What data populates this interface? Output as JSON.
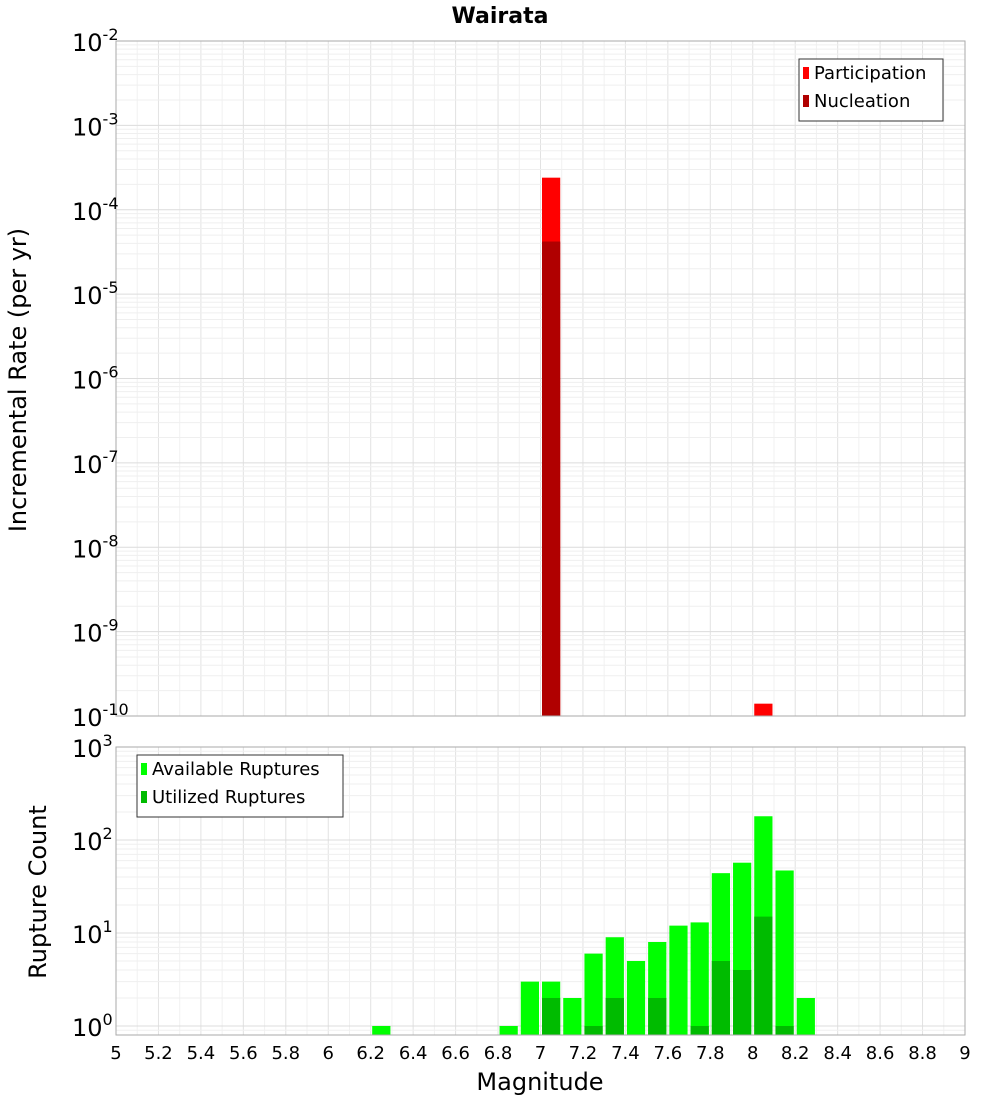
{
  "title": "Wairata",
  "colors": {
    "participation": "#ff0000",
    "nucleation": "#b00000",
    "available": "#00ff00",
    "utilized": "#00bb00",
    "grid": "#e6e6e6",
    "frame": "#aaaaaa"
  },
  "chart_data": [
    {
      "type": "bar",
      "scale": "log",
      "ylabel": "Incremental Rate (per yr)",
      "ylim": [
        1e-10,
        0.01
      ],
      "xlim": [
        5,
        9
      ],
      "bin_width": 0.1,
      "y_tick_labels": [
        {
          "base": "10",
          "exp": "-10"
        },
        {
          "base": "10",
          "exp": "-9"
        },
        {
          "base": "10",
          "exp": "-8"
        },
        {
          "base": "10",
          "exp": "-7"
        },
        {
          "base": "10",
          "exp": "-6"
        },
        {
          "base": "10",
          "exp": "-5"
        },
        {
          "base": "10",
          "exp": "-4"
        },
        {
          "base": "10",
          "exp": "-3"
        },
        {
          "base": "10",
          "exp": "-2"
        }
      ],
      "legend": {
        "position": "top-right",
        "entries": [
          "Participation",
          "Nucleation"
        ]
      },
      "series": [
        {
          "name": "Participation",
          "x": [
            7.05,
            8.05
          ],
          "values": [
            0.00024,
            1.4e-10
          ]
        },
        {
          "name": "Nucleation",
          "x": [
            7.05
          ],
          "values": [
            4.2e-05
          ]
        }
      ]
    },
    {
      "type": "bar",
      "scale": "log",
      "ylabel": "Rupture Count",
      "xlabel": "Magnitude",
      "ylim": [
        0.8,
        1000
      ],
      "xlim": [
        5,
        9
      ],
      "bin_width": 0.1,
      "y_tick_labels": [
        {
          "base": "10",
          "exp": "0"
        },
        {
          "base": "10",
          "exp": "1"
        },
        {
          "base": "10",
          "exp": "2"
        },
        {
          "base": "10",
          "exp": "3"
        }
      ],
      "x_tick_labels": [
        "5",
        "5.2",
        "5.4",
        "5.6",
        "5.8",
        "6",
        "6.2",
        "6.4",
        "6.6",
        "6.8",
        "7",
        "7.2",
        "7.4",
        "7.6",
        "7.8",
        "8",
        "8.2",
        "8.4",
        "8.6",
        "8.8",
        "9"
      ],
      "legend": {
        "position": "top-left",
        "entries": [
          "Available Ruptures",
          "Utilized Ruptures"
        ]
      },
      "series": [
        {
          "name": "Available Ruptures",
          "x": [
            6.25,
            6.85,
            6.95,
            7.05,
            7.15,
            7.25,
            7.35,
            7.45,
            7.55,
            7.65,
            7.75,
            7.85,
            7.95,
            8.05,
            8.15,
            8.25
          ],
          "values": [
            1,
            1,
            3,
            3,
            2,
            6,
            9,
            5,
            8,
            12,
            13,
            44,
            57,
            180,
            47,
            2
          ]
        },
        {
          "name": "Utilized Ruptures",
          "x": [
            7.05,
            7.25,
            7.35,
            7.55,
            7.75,
            7.85,
            7.95,
            8.05,
            8.15
          ],
          "values": [
            2,
            1,
            2,
            2,
            1,
            5,
            4,
            15,
            1
          ]
        }
      ]
    }
  ]
}
